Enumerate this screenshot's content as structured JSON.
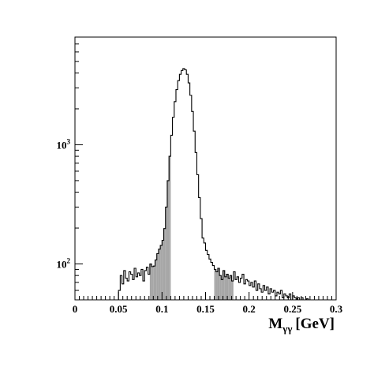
{
  "chart_data": {
    "type": "histogram",
    "xlabel_main": "M",
    "xlabel_sub": "γγ",
    "xlabel_unit": "[GeV]",
    "ylabel": "",
    "xlim": [
      0,
      0.3
    ],
    "ylim": [
      50,
      8000
    ],
    "y_scale": "log",
    "grid": false,
    "x_ticks": [
      {
        "value": 0,
        "label": "0"
      },
      {
        "value": 0.05,
        "label": "0.05"
      },
      {
        "value": 0.1,
        "label": "0.1"
      },
      {
        "value": 0.15,
        "label": "0.15"
      },
      {
        "value": 0.2,
        "label": "0.2"
      },
      {
        "value": 0.25,
        "label": "0.25"
      },
      {
        "value": 0.3,
        "label": "0.3"
      }
    ],
    "y_ticks": [
      {
        "value": 100,
        "base": "10",
        "exponent": "2"
      },
      {
        "value": 1000,
        "base": "10",
        "exponent": "3"
      }
    ],
    "bin_width": 0.002,
    "x_start": 0.05,
    "values": [
      60,
      80,
      68,
      88,
      76,
      72,
      86,
      82,
      74,
      92,
      78,
      84,
      80,
      90,
      72,
      88,
      94,
      82,
      100,
      95,
      96,
      108,
      122,
      133,
      143,
      158,
      198,
      300,
      500,
      800,
      1200,
      1700,
      2300,
      2900,
      3450,
      3900,
      4200,
      4350,
      4250,
      3900,
      3300,
      2600,
      1900,
      1300,
      860,
      560,
      360,
      240,
      165,
      150,
      130,
      120,
      110,
      103,
      97,
      90,
      86,
      92,
      80,
      74,
      88,
      78,
      82,
      76,
      80,
      72,
      86,
      74,
      78,
      70,
      76,
      82,
      68,
      74,
      72,
      66,
      70,
      64,
      72,
      60,
      68,
      62,
      58,
      66,
      60,
      64,
      56,
      62,
      58,
      60,
      54,
      58,
      56,
      60,
      52,
      56,
      54,
      52,
      56,
      50,
      54,
      52,
      50,
      52,
      50,
      52,
      50,
      50,
      51,
      50,
      50,
      50,
      50,
      50,
      50,
      50,
      50,
      50,
      50,
      50,
      50,
      50,
      50,
      50,
      50
    ],
    "shaded_regions": [
      [
        0.085,
        0.11
      ],
      [
        0.16,
        0.182
      ]
    ]
  }
}
